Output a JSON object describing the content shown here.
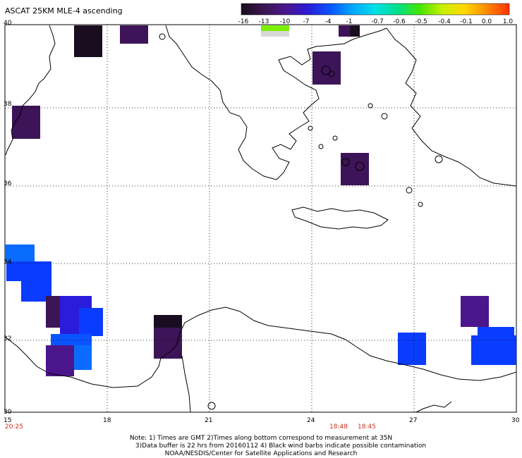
{
  "title": "ASCAT 25KM MLE-4 ascending",
  "colorbar": {
    "labels": [
      "-16",
      "-13",
      "-10",
      "-7",
      "-4",
      "-1",
      "-0.7",
      "-0.6",
      "-0.5",
      "-0.4",
      "-0.1",
      "0.0",
      "1.0"
    ],
    "colors": [
      "#1a0d1f",
      "#3a1650",
      "#4b168c",
      "#2a1cd8",
      "#0a55ff",
      "#00a8ff",
      "#00e0e6",
      "#00e08a",
      "#46e600",
      "#c8f000",
      "#ffd800",
      "#ff8a00",
      "#ff3000"
    ]
  },
  "axes": {
    "x_ticks": [
      "15",
      "18",
      "21",
      "24",
      "27",
      "30"
    ],
    "y_ticks": [
      "40",
      "38",
      "36",
      "34",
      "32",
      "30"
    ]
  },
  "times": {
    "left": "20:25",
    "right_a": "18:48",
    "right_b": "18:45"
  },
  "notes": {
    "line1": "Note: 1) Times are GMT 2)Times along bottom correspond to measurement at 35N",
    "line2": "3)Data buffer is 22 hrs from 20160112 4) Black wind barbs indicate possible contamination",
    "line3": "NOAA/NESDIS/Center for Satellite Applications and Research"
  },
  "chart_data": {
    "type": "heatmap",
    "title": "ASCAT 25KM MLE-4 ascending",
    "x_range": [
      15,
      30
    ],
    "y_range": [
      30,
      40
    ],
    "grid": true,
    "colors_used": {
      "dark_purple": "#3d1457",
      "near_black": "#1a0d1f",
      "blue": "#0a3cff",
      "royal_blue": "#2a1cd8",
      "indigo": "#4b168c",
      "light_blue": "#0a6cff",
      "cyan_blue": "#00a8ff",
      "lime": "#7cf000",
      "light_gray": "#d8d8d8"
    }
  }
}
